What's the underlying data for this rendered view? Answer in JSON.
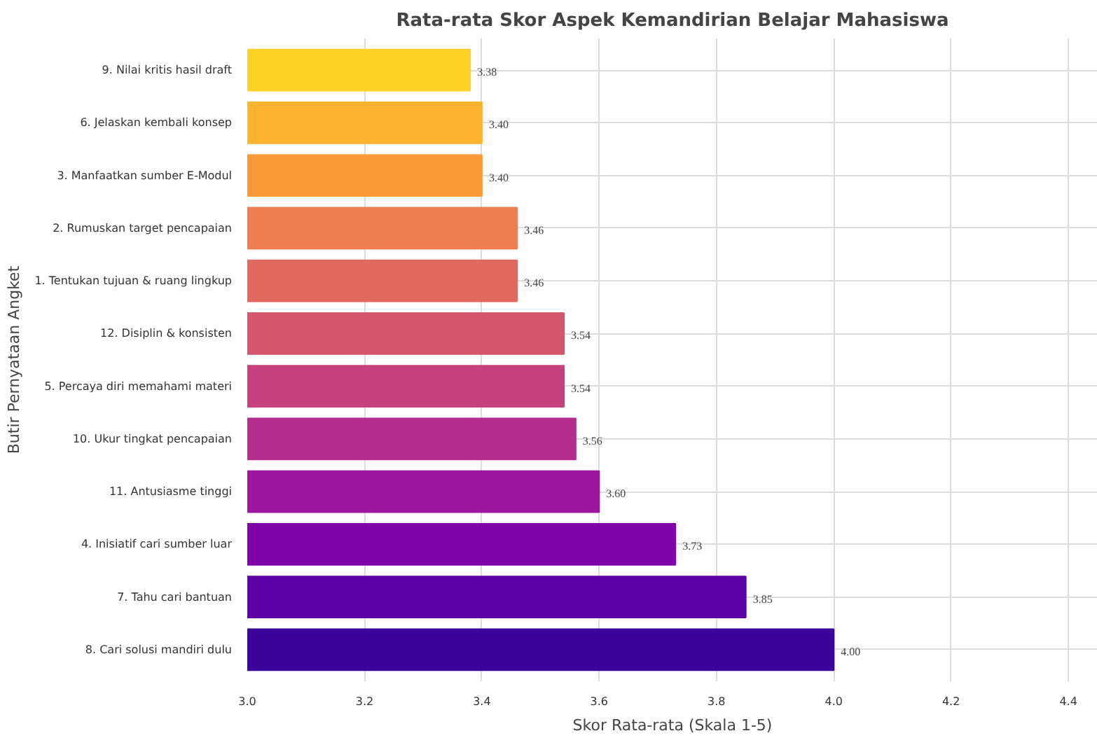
{
  "chart_data": {
    "type": "bar",
    "orientation": "horizontal",
    "title": "Rata-rata Skor Aspek Kemandirian Belajar Mahasiswa",
    "xlabel": "Skor Rata-rata (Skala 1-5)",
    "ylabel": "Butir Pernyataan Angket",
    "categories": [
      "9. Nilai kritis hasil draft",
      "6. Jelaskan kembali konsep",
      "3. Manfaatkan sumber E-Modul",
      "2. Rumuskan target pencapaian",
      "1. Tentukan tujuan & ruang lingkup",
      "12. Disiplin & konsisten",
      "5. Percaya diri memahami materi",
      "10. Ukur tingkat pencapaian",
      "11. Antusiasme tinggi",
      "4. Inisiatif cari sumber luar",
      "7. Tahu cari bantuan",
      "8. Cari solusi mandiri dulu"
    ],
    "values": [
      3.38,
      3.4,
      3.4,
      3.46,
      3.46,
      3.54,
      3.54,
      3.56,
      3.6,
      3.73,
      3.85,
      4.0
    ],
    "value_labels": [
      "3.38",
      "3.40",
      "3.40",
      "3.46",
      "3.46",
      "3.54",
      "3.54",
      "3.56",
      "3.60",
      "3.73",
      "3.85",
      "4.00"
    ],
    "colors": [
      "#fcd225",
      "#fdb32f",
      "#fa9b3a",
      "#ef7e50",
      "#e2695f",
      "#d5546e",
      "#c6417d",
      "#b42e8d",
      "#9c179e",
      "#7e03a8",
      "#5c01a6",
      "#3a049a"
    ],
    "xlim": [
      3.0,
      4.45
    ],
    "xticks": [
      {
        "value": 3.0,
        "label": "3.0"
      },
      {
        "value": 3.2,
        "label": "3.2"
      },
      {
        "value": 3.4,
        "label": "3.4"
      },
      {
        "value": 3.6,
        "label": "3.6"
      },
      {
        "value": 3.8,
        "label": "3.8"
      },
      {
        "value": 4.0,
        "label": "4.0"
      },
      {
        "value": 4.2,
        "label": "4.2"
      },
      {
        "value": 4.4,
        "label": "4.4"
      }
    ],
    "grid": true
  }
}
